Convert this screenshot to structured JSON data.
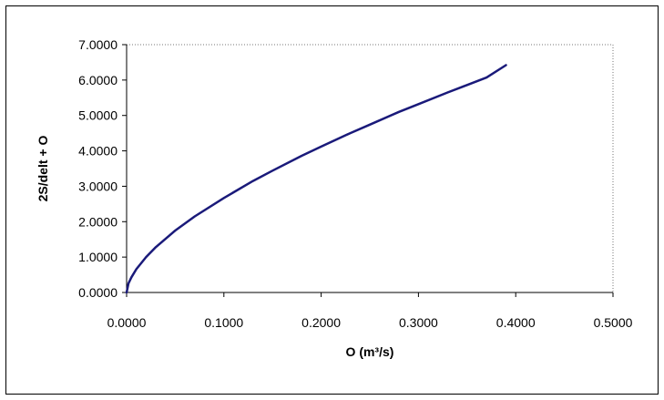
{
  "chart_data": {
    "type": "line",
    "title": "",
    "xlabel": "O (m³/s)",
    "ylabel": "2S/delt + O",
    "xlim": [
      0,
      0.5
    ],
    "ylim": [
      0,
      7
    ],
    "x_ticks": [
      0,
      0.1,
      0.2,
      0.3,
      0.4,
      0.5
    ],
    "x_tick_labels": [
      "0.0000",
      "0.1000",
      "0.2000",
      "0.3000",
      "0.4000",
      "0.5000"
    ],
    "y_ticks": [
      0,
      1,
      2,
      3,
      4,
      5,
      6,
      7
    ],
    "y_tick_labels": [
      "0.0000",
      "1.0000",
      "2.0000",
      "3.0000",
      "4.0000",
      "5.0000",
      "6.0000",
      "7.0000"
    ],
    "grid": false,
    "legend": false,
    "series": [
      {
        "name": "2S/delt + O",
        "color": "#1a1a7a",
        "x": [
          0,
          0.002,
          0.005,
          0.01,
          0.02,
          0.03,
          0.05,
          0.07,
          0.1,
          0.13,
          0.15,
          0.18,
          0.2,
          0.23,
          0.25,
          0.28,
          0.3,
          0.33,
          0.35,
          0.37,
          0.39
        ],
        "y": [
          0,
          0.26,
          0.43,
          0.66,
          1.0,
          1.28,
          1.75,
          2.15,
          2.67,
          3.15,
          3.44,
          3.86,
          4.12,
          4.5,
          4.74,
          5.1,
          5.32,
          5.65,
          5.86,
          6.07,
          6.42
        ]
      }
    ]
  }
}
